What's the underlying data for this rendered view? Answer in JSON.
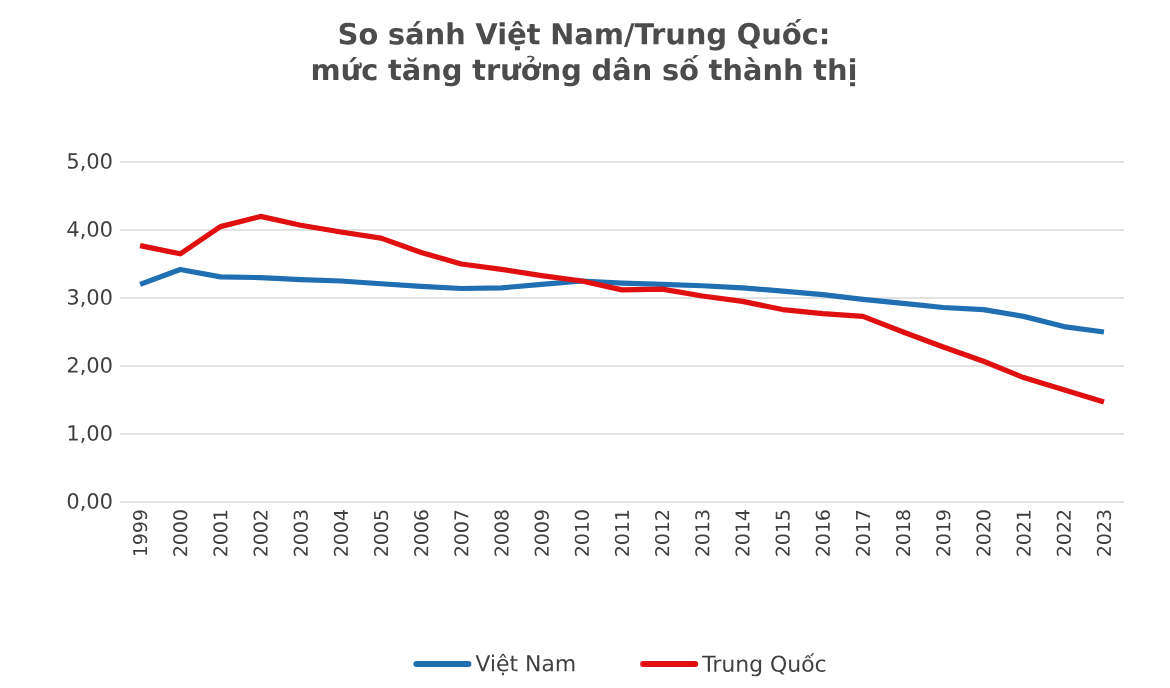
{
  "chart_data": {
    "type": "line",
    "title": "So sánh Việt Nam/Trung Quốc: mức tăng trưởng dân số thành thị",
    "categories": [
      "1999",
      "2000",
      "2001",
      "2002",
      "2003",
      "2004",
      "2005",
      "2006",
      "2007",
      "2008",
      "2009",
      "2010",
      "2011",
      "2012",
      "2013",
      "2014",
      "2015",
      "2016",
      "2017",
      "2018",
      "2019",
      "2020",
      "2021",
      "2022",
      "2023"
    ],
    "series": [
      {
        "name": "Việt Nam",
        "color": "#1f6fb2",
        "values": [
          3.2,
          3.42,
          3.31,
          3.3,
          3.27,
          3.25,
          3.21,
          3.17,
          3.14,
          3.15,
          3.2,
          3.25,
          3.22,
          3.2,
          3.18,
          3.15,
          3.1,
          3.05,
          2.98,
          2.92,
          2.86,
          2.83,
          2.73,
          2.58,
          2.5
        ]
      },
      {
        "name": "Trung Quốc",
        "color": "#e01010",
        "values": [
          3.77,
          3.65,
          4.05,
          4.2,
          4.07,
          3.97,
          3.88,
          3.67,
          3.5,
          3.42,
          3.33,
          3.25,
          3.12,
          3.13,
          3.03,
          2.95,
          2.83,
          2.77,
          2.73,
          2.5,
          2.28,
          2.07,
          1.83,
          1.65,
          1.47
        ]
      }
    ],
    "ylim": [
      0,
      5
    ],
    "yticks": [
      {
        "value": 0,
        "label": "0,00"
      },
      {
        "value": 1,
        "label": "1,00"
      },
      {
        "value": 2,
        "label": "2,00"
      },
      {
        "value": 3,
        "label": "3,00"
      },
      {
        "value": 4,
        "label": "4,00"
      },
      {
        "value": 5,
        "label": "5,00"
      }
    ],
    "grid": "y",
    "legend": "bottom",
    "marker": "none",
    "line_style": "solid"
  }
}
